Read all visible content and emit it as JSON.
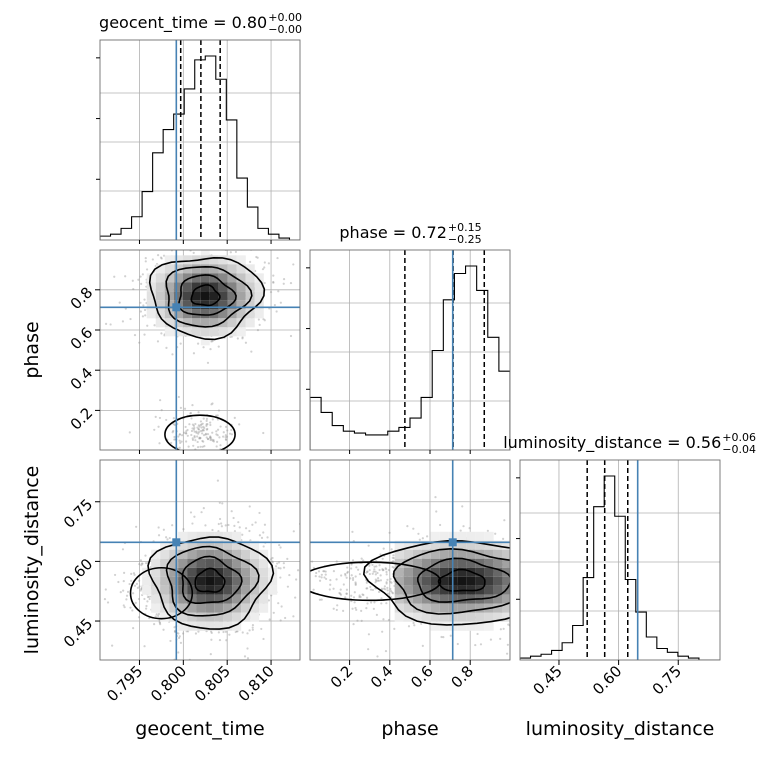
{
  "chart_data": {
    "type": "corner",
    "params": [
      {
        "name": "geocent_time",
        "range": [
          0.7905,
          0.8133
        ],
        "ticks": [
          0.795,
          0.8,
          0.805,
          0.81
        ],
        "tick_labels": [
          "0.795",
          "0.800",
          "0.805",
          "0.810"
        ]
      },
      {
        "name": "phase",
        "range": [
          0.003,
          0.998
        ],
        "ticks": [
          0.2,
          0.4,
          0.6,
          0.8
        ],
        "tick_labels": [
          "0.2",
          "0.4",
          "0.6",
          "0.8"
        ]
      },
      {
        "name": "luminosity_distance",
        "range": [
          0.352,
          0.855
        ],
        "ticks": [
          0.45,
          0.6,
          0.75
        ],
        "tick_labels": [
          "0.45",
          "0.60",
          "0.75"
        ]
      }
    ],
    "truths": [
      0.7992,
      0.713,
      0.648
    ],
    "truth_color": "#4682b4",
    "titles": [
      {
        "param": "geocent_time",
        "label": "geocent_time = ",
        "median": "0.80",
        "upper": "+0.00",
        "lower": "−0.00"
      },
      {
        "param": "phase",
        "label": "phase = ",
        "median": "0.72",
        "upper": "+0.15",
        "lower": "−0.25"
      },
      {
        "param": "luminosity_distance",
        "label": "luminosity_distance = ",
        "median": "0.56",
        "upper": "+0.06",
        "lower": "−0.04"
      }
    ],
    "quantiles": [
      [
        0.7997,
        0.802,
        0.8042
      ],
      [
        0.475,
        0.715,
        0.87
      ],
      [
        0.521,
        0.565,
        0.623
      ]
    ],
    "histograms": [
      {
        "edges_range": [
          0.7905,
          0.8133
        ],
        "counts": [
          2,
          3,
          6,
          12,
          25,
          45,
          57,
          65,
          78,
          93,
          95,
          83,
          62,
          32,
          17,
          6,
          3,
          1,
          0
        ]
      },
      {
        "edges_range": [
          0.003,
          0.998
        ],
        "counts": [
          28,
          20,
          13,
          10,
          9,
          8,
          8,
          10,
          12,
          17,
          28,
          53,
          80,
          94,
          98,
          85,
          60,
          42
        ]
      },
      {
        "edges_range": [
          0.352,
          0.855
        ],
        "counts": [
          1,
          2,
          3,
          5,
          9,
          18,
          43,
          80,
          96,
          75,
          42,
          25,
          12,
          6,
          4,
          2,
          1,
          0,
          0
        ]
      }
    ],
    "peaks": {
      "geocent_time_phase": [
        0.8025,
        0.77
      ],
      "geocent_time_luminosity_distance": [
        0.803,
        0.55
      ],
      "phase_luminosity_distance": [
        0.76,
        0.55
      ]
    },
    "grid": true
  }
}
